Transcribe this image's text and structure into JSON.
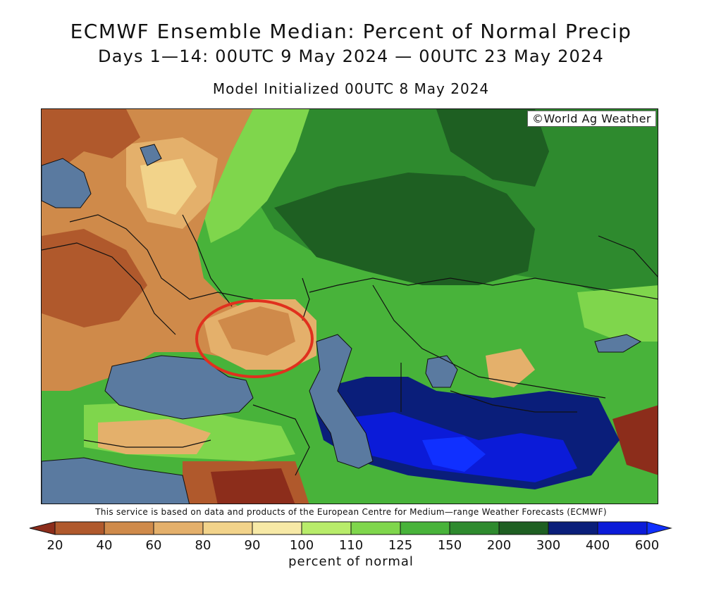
{
  "header": {
    "title": "ECMWF Ensemble Median: Percent of Normal Precip",
    "subtitle": "Days 1—14: 00UTC 9 May 2024 — 00UTC 23 May 2024",
    "init": "Model Initialized 00UTC 8 May 2024"
  },
  "map": {
    "copyright": "©World Ag Weather",
    "colors": {
      "water": "#5a7aa0",
      "pct_20": "#8c2d1b",
      "pct_40": "#b0592c",
      "pct_60": "#cf8a4a",
      "pct_80": "#e4b06b",
      "pct_90": "#f2d38a",
      "pct_100": "#f7e9a6",
      "pct_110": "#b8ec6a",
      "pct_125": "#7fd64c",
      "pct_150": "#48b33a",
      "pct_200": "#2e8a2e",
      "pct_300": "#1e5f22",
      "pct_400": "#0a1e7a",
      "pct_600": "#0b1bd8",
      "highlight_circle": "#e0301e"
    },
    "credit": "This service is based on data and products of the European Centre for Medium—range Weather Forecasts (ECMWF)"
  },
  "legend": {
    "labels": [
      "20",
      "40",
      "60",
      "80",
      "90",
      "100",
      "110",
      "125",
      "150",
      "200",
      "300",
      "400",
      "600"
    ],
    "colors": [
      "#8c2d1b",
      "#b0592c",
      "#cf8a4a",
      "#e4b06b",
      "#f2d38a",
      "#f7e9a6",
      "#b8ec6a",
      "#7fd64c",
      "#48b33a",
      "#2e8a2e",
      "#1e5f22",
      "#0a1e7a",
      "#0b1bd8",
      "#1030ff"
    ],
    "title": "percent of normal"
  }
}
